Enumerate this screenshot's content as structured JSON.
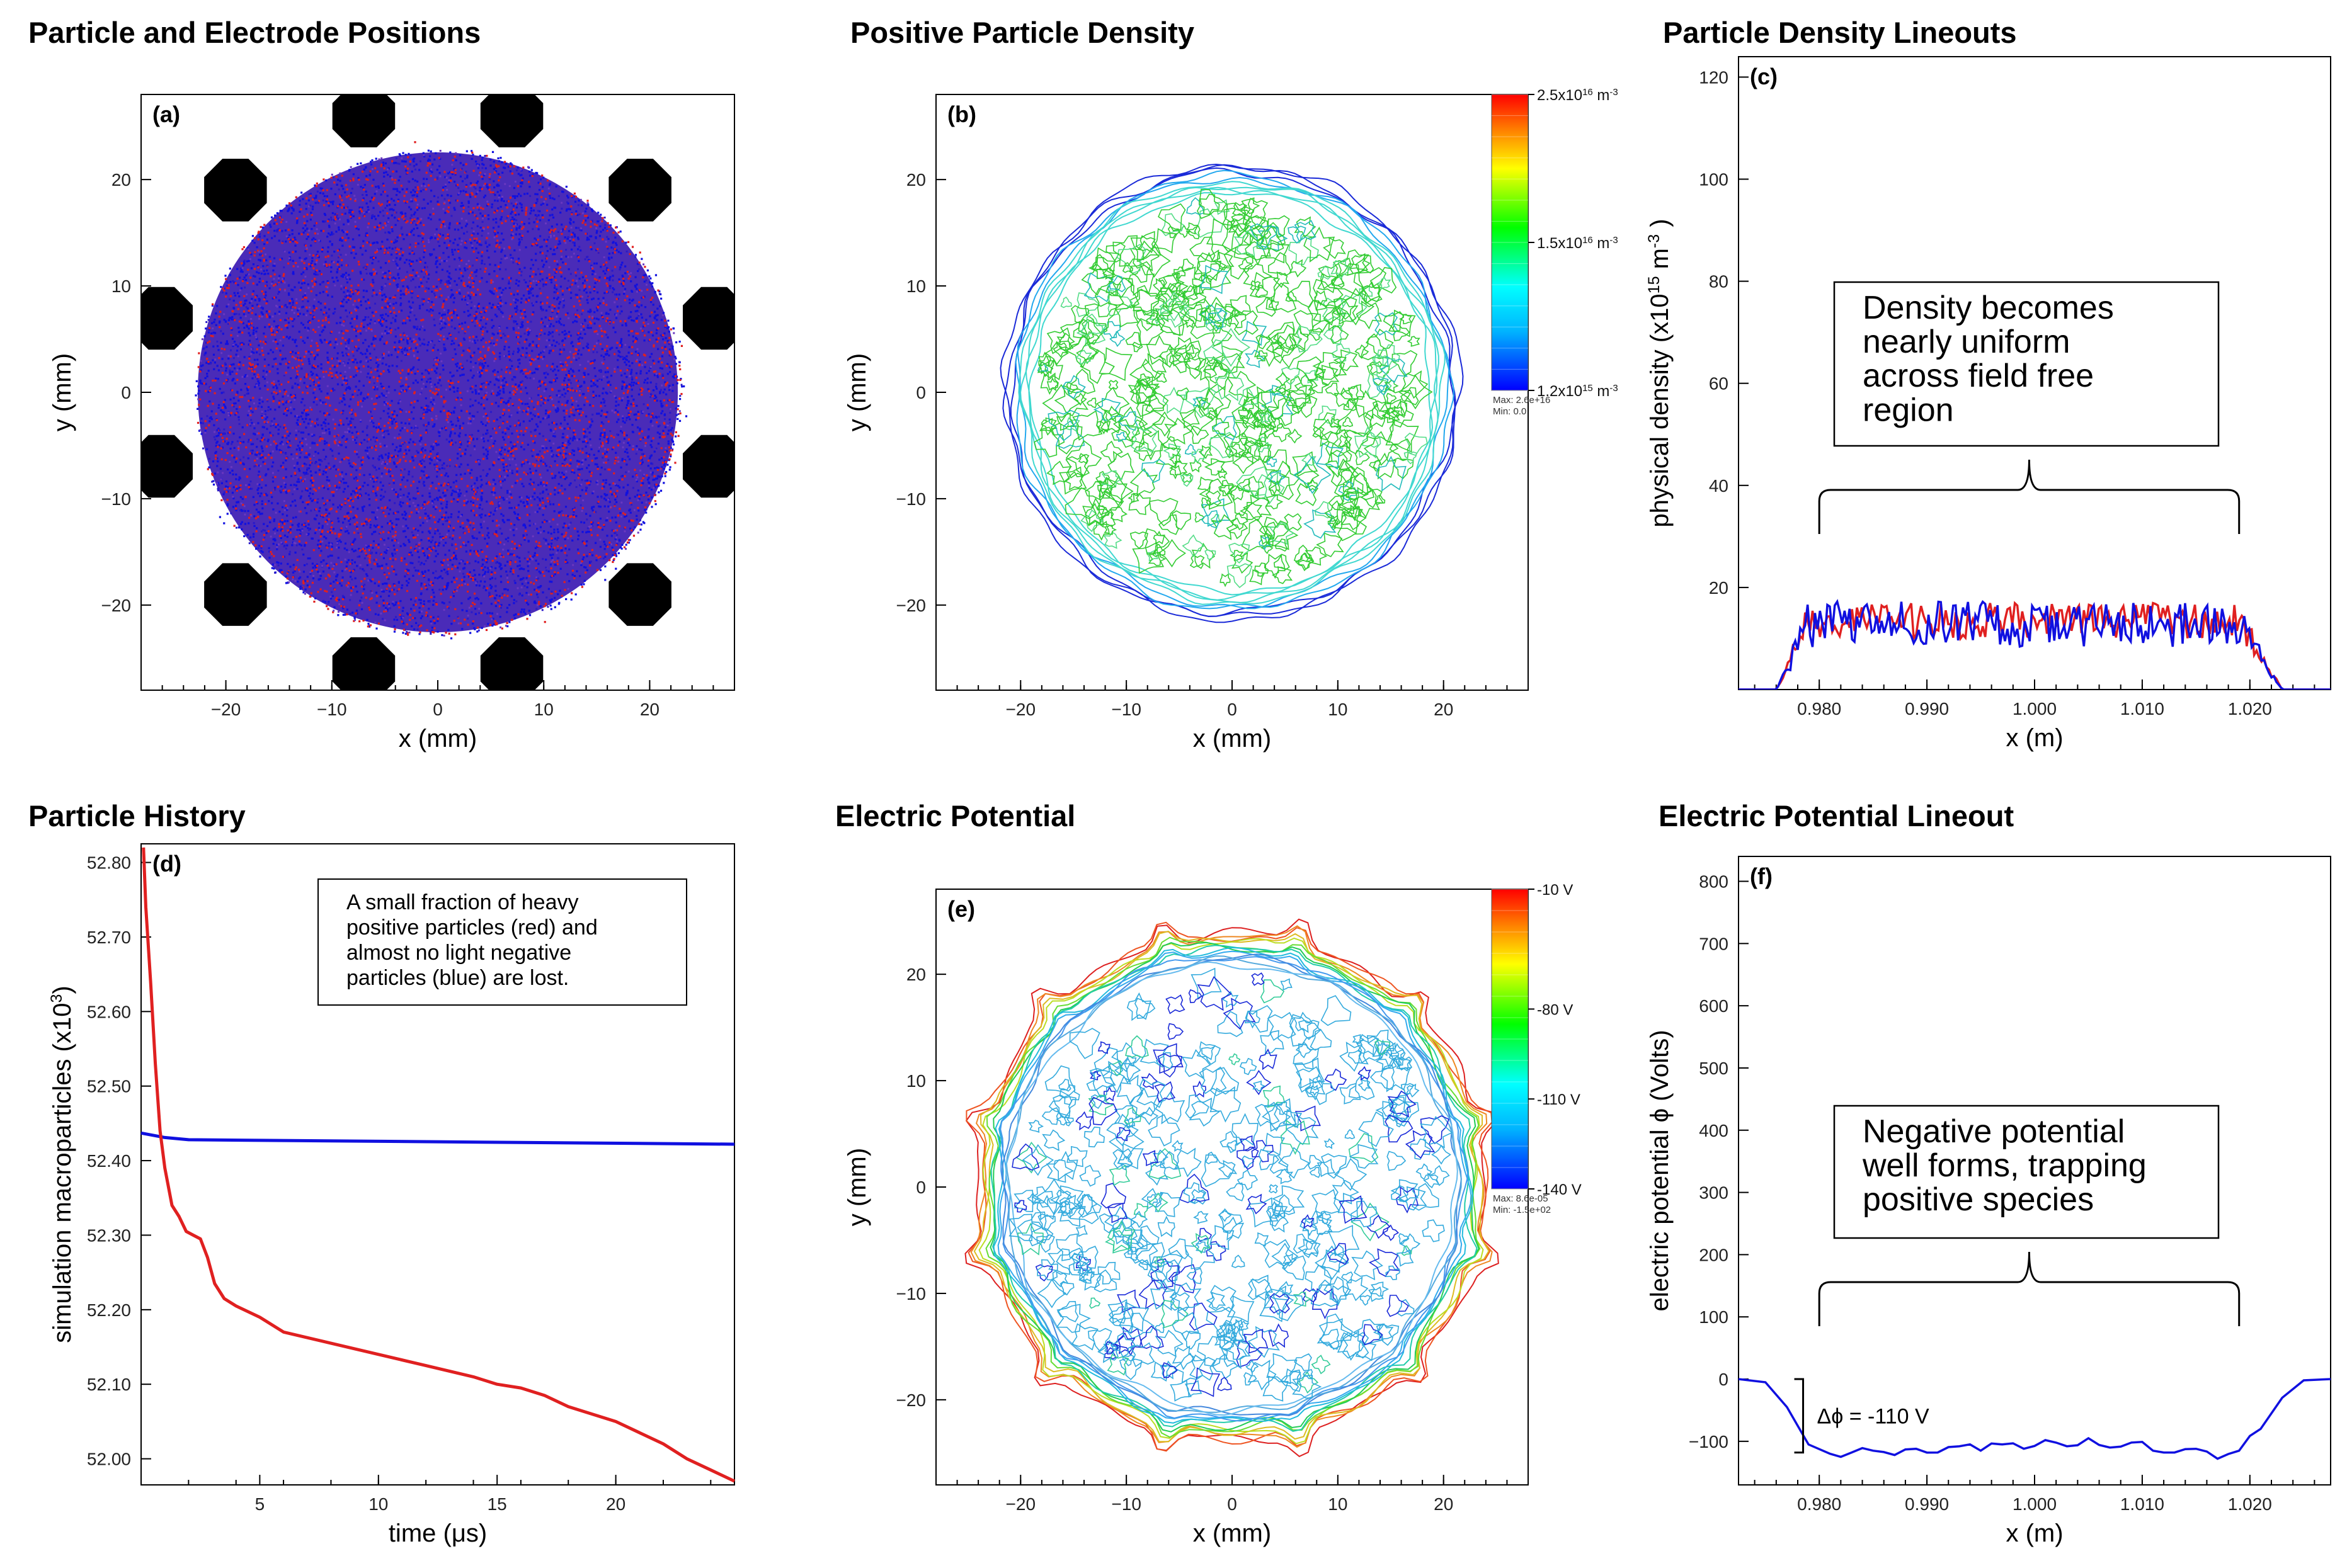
{
  "chart_data": [
    {
      "type": "scatter",
      "panel": "(a)",
      "title": "Particle and Electrode Positions",
      "xlabel": "x (mm)",
      "ylabel": "y (mm)",
      "xlim": [
        -28,
        28
      ],
      "ylim": [
        -28,
        28
      ],
      "xticks": [
        -20,
        -10,
        0,
        10,
        20
      ],
      "yticks": [
        -20,
        -10,
        0,
        10,
        20
      ],
      "series": [
        {
          "color": "#1010e0",
          "shape": "uniform disk",
          "center": [
            0,
            0
          ],
          "radius_mm": 23
        },
        {
          "color": "#e02020",
          "shape": "uniform disk",
          "center": [
            0,
            0
          ],
          "radius_mm": 23
        }
      ],
      "electrodes": {
        "color": "#000000",
        "count": 12,
        "orbit_radius_mm": 27,
        "radius_mm": 3.2
      },
      "grid": false
    },
    {
      "type": "contour",
      "panel": "(b)",
      "title": "Positive Particle Density",
      "xlabel": "x (mm)",
      "ylabel": "y (mm)",
      "xlim": [
        -28,
        28
      ],
      "ylim": [
        -28,
        28
      ],
      "xticks": [
        -20,
        -10,
        0,
        10,
        20
      ],
      "yticks": [
        -20,
        -10,
        0,
        10,
        20
      ],
      "region_radius_mm": 21.5,
      "colorbar": {
        "labels": [
          {
            "value": 0.0,
            "text": "1.2x10",
            "exp": "15",
            "unit": "m",
            "unitexp": "-3"
          },
          {
            "value": 0.5,
            "text": "1.5x10",
            "exp": "16",
            "unit": "m",
            "unitexp": "-3"
          },
          {
            "value": 1.0,
            "text": "2.5x10",
            "exp": "16",
            "unit": "m",
            "unitexp": "-3"
          }
        ],
        "max_text": "Max: 2.6e+16",
        "min_text": "Min: 0.0"
      },
      "grid": false
    },
    {
      "type": "line",
      "panel": "(c)",
      "title": "Particle Density Lineouts",
      "xlabel": "x (m)",
      "ylabel": "physical density (x10",
      "ylabel_exp": "15",
      "ylabel_unit": " m",
      "ylabel_unitexp": "-3",
      "ylabel_close": " )",
      "xlim": [
        0.9725,
        1.0275
      ],
      "ylim": [
        0,
        124
      ],
      "xticks": [
        0.98,
        0.99,
        1.0,
        1.01,
        1.02
      ],
      "xticklabels": [
        "0.980",
        "0.990",
        "1.000",
        "1.010",
        "1.020"
      ],
      "yticks": [
        20,
        40,
        60,
        80,
        100,
        120
      ],
      "series": [
        {
          "color": "#e02020",
          "edges": [
            0.976,
            0.979,
            1.019,
            1.023
          ],
          "plateau": 13.5,
          "noise": 3.5
        },
        {
          "color": "#1010e0",
          "edges": [
            0.976,
            0.979,
            1.019,
            1.023
          ],
          "plateau": 12.8,
          "noise": 4.5
        }
      ],
      "annotation": {
        "lines": [
          "Density becomes",
          "nearly uniform",
          "across field free",
          "region"
        ],
        "span": [
          0.98,
          1.019
        ]
      },
      "grid": false
    },
    {
      "type": "line",
      "panel": "(d)",
      "title": "Particle History",
      "xlabel": "time (μs)",
      "ylabel": "simulation macroparticles (x10",
      "ylabel_exp": "3",
      "ylabel_close": ")",
      "xlim": [
        0,
        25
      ],
      "ylim": [
        51.965,
        52.825
      ],
      "xticks": [
        5,
        10,
        15,
        20
      ],
      "yticks": [
        52.0,
        52.1,
        52.2,
        52.3,
        52.4,
        52.5,
        52.6,
        52.7,
        52.8
      ],
      "yticklabels": [
        "52.00",
        "52.10",
        "52.20",
        "52.30",
        "52.40",
        "52.50",
        "52.60",
        "52.70",
        "52.80"
      ],
      "series": [
        {
          "color": "#1010e0",
          "x": [
            0,
            1,
            2,
            25
          ],
          "y": [
            52.437,
            52.431,
            52.428,
            52.422
          ]
        },
        {
          "color": "#e02020",
          "x": [
            0.1,
            0.2,
            0.4,
            0.6,
            0.8,
            1.0,
            1.3,
            1.6,
            1.9,
            2.2,
            2.5,
            2.8,
            3.1,
            3.5,
            4.0,
            5.0,
            6.0,
            8.0,
            10.0,
            12.0,
            14.0,
            15.0,
            16.0,
            17.0,
            18.0,
            20.0,
            22.0,
            23.0,
            24.0,
            25.0
          ],
          "y": [
            52.82,
            52.74,
            52.64,
            52.53,
            52.44,
            52.39,
            52.34,
            52.325,
            52.305,
            52.3,
            52.295,
            52.27,
            52.235,
            52.215,
            52.205,
            52.19,
            52.17,
            52.155,
            52.14,
            52.125,
            52.11,
            52.1,
            52.095,
            52.085,
            52.07,
            52.05,
            52.02,
            52.0,
            51.985,
            51.97
          ]
        }
      ],
      "annotation": {
        "lines": [
          "A small fraction of heavy",
          "positive particles (red) and",
          "almost no light negative",
          "particles (blue) are lost."
        ]
      },
      "grid": false
    },
    {
      "type": "contour",
      "panel": "(e)",
      "title": "Electric Potential",
      "xlabel": "x (mm)",
      "ylabel": "y (mm)",
      "xlim": [
        -28,
        28
      ],
      "ylim": [
        -28,
        28
      ],
      "xticks": [
        -20,
        -10,
        0,
        10,
        20
      ],
      "yticks": [
        -20,
        -10,
        0,
        10,
        20
      ],
      "region_radius_mm": 24,
      "colorbar": {
        "labels": [
          {
            "value": 0.0,
            "text": "-140 V"
          },
          {
            "value": 0.3,
            "text": "-110 V"
          },
          {
            "value": 0.6,
            "text": "-80 V"
          },
          {
            "value": 1.0,
            "text": "-10 V"
          }
        ],
        "max_text": "Max: 8.6e-05",
        "min_text": "Min: -1.5e+02"
      },
      "grid": false
    },
    {
      "type": "line",
      "panel": "(f)",
      "title": "Electric Potential Lineout",
      "xlabel": "x (m)",
      "ylabel": "electric potential ϕ (Volts)",
      "xlim": [
        0.9725,
        1.0275
      ],
      "ylim": [
        -170,
        840
      ],
      "xticks": [
        0.98,
        0.99,
        1.0,
        1.01,
        1.02
      ],
      "xticklabels": [
        "0.980",
        "0.990",
        "1.000",
        "1.010",
        "1.020"
      ],
      "yticks": [
        -100,
        0,
        100,
        200,
        300,
        400,
        500,
        600,
        700,
        800
      ],
      "series": [
        {
          "color": "#1010e0",
          "x": [
            0.9725,
            0.975,
            0.977,
            0.979,
            0.981,
            0.983,
            0.985,
            0.987,
            0.989,
            0.991,
            0.993,
            0.995,
            0.997,
            0.999,
            1.001,
            1.003,
            1.005,
            1.007,
            1.009,
            1.011,
            1.013,
            1.015,
            1.017,
            1.019,
            1.021,
            1.023,
            1.025,
            1.0275
          ],
          "y": [
            0,
            -5,
            -45,
            -105,
            -120,
            -118,
            -115,
            -122,
            -112,
            -118,
            -108,
            -115,
            -105,
            -112,
            -98,
            -108,
            -95,
            -110,
            -102,
            -115,
            -118,
            -112,
            -128,
            -115,
            -80,
            -30,
            -2,
            0
          ]
        }
      ],
      "annotation": {
        "lines": [
          "Negative potential",
          "well forms, trapping",
          "positive species"
        ],
        "span": [
          0.98,
          1.019
        ]
      },
      "delta": "Δϕ = -110 V",
      "grid": false
    }
  ]
}
